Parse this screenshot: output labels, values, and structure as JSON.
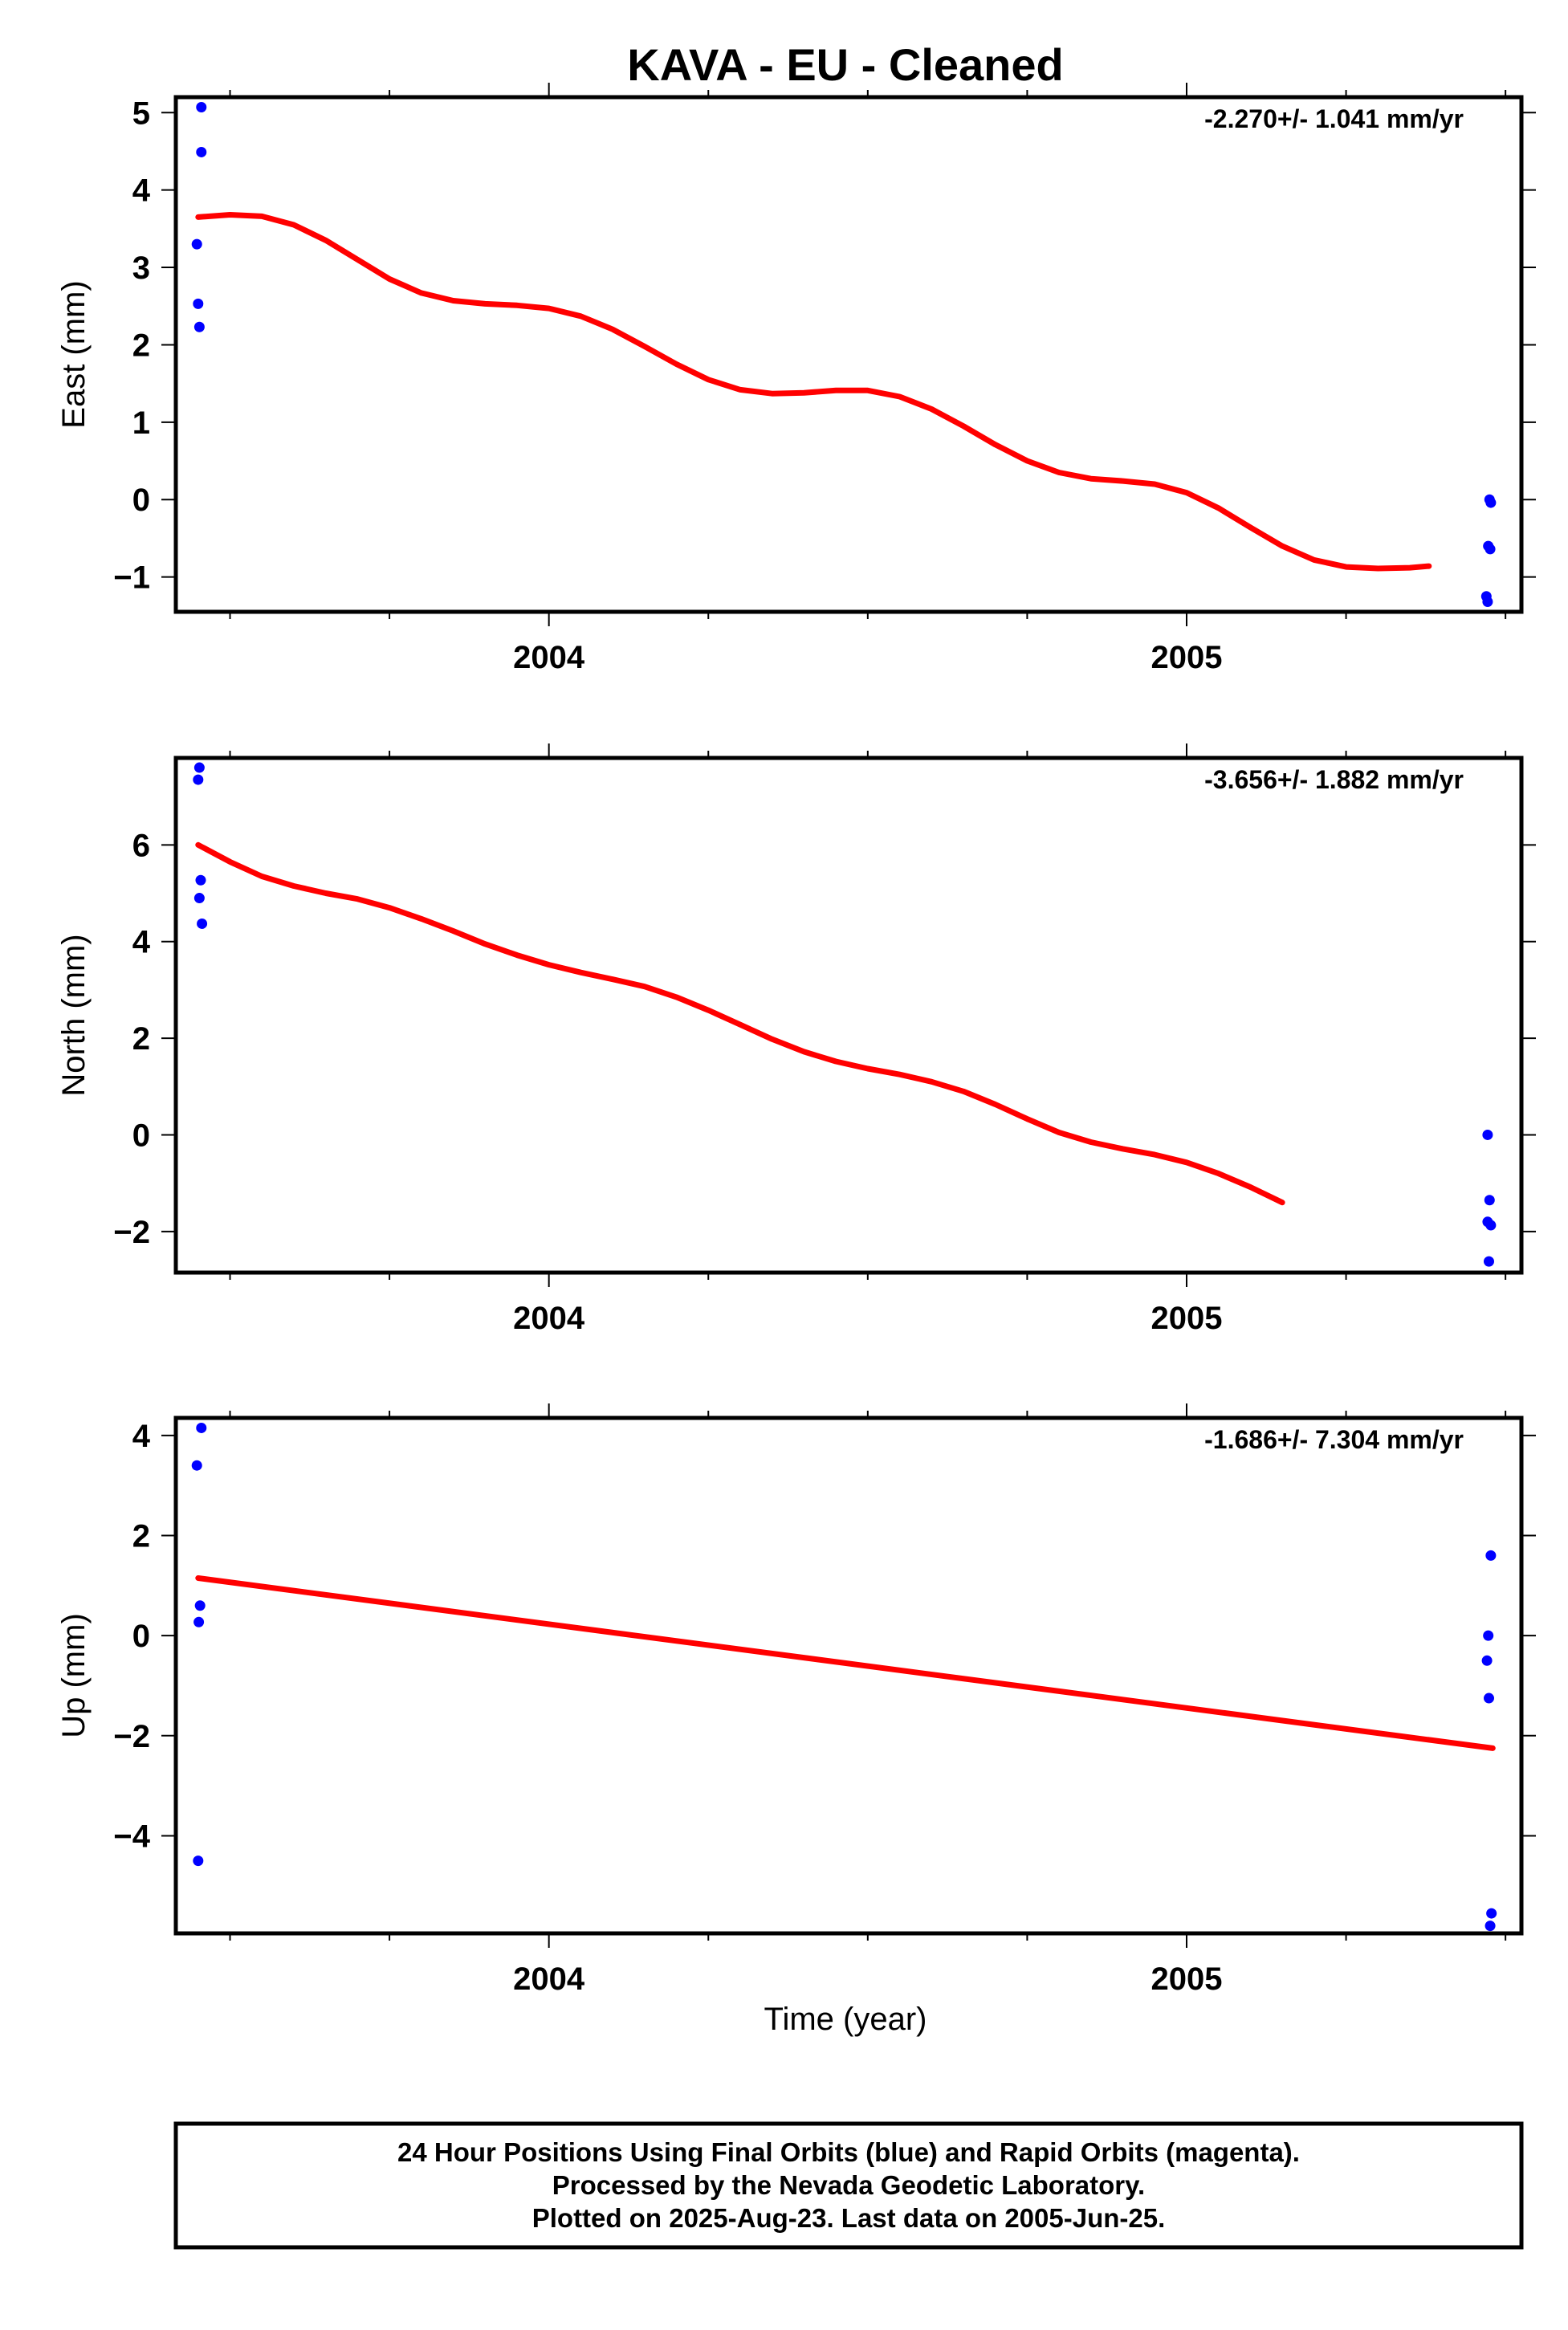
{
  "title": "KAVA  - EU - Cleaned",
  "xlabel": "Time (year)",
  "footer": {
    "line1": "24 Hour Positions Using Final Orbits (blue) and Rapid Orbits (magenta).",
    "line2": "Processed by the Nevada Geodetic Laboratory.",
    "line3": "Plotted on 2025-Aug-23. Last data on 2005-Jun-25."
  },
  "colors": {
    "final_orbits": "#0000ff",
    "fit": "#ff0000"
  },
  "chart_data": [
    {
      "type": "scatter",
      "name": "east",
      "ylabel": "East (mm)",
      "rate_label": "-2.270+/- 1.041 mm/yr",
      "xlim": [
        2003.415,
        2005.525
      ],
      "ylim": [
        -1.45,
        5.2
      ],
      "xticks": [
        2004,
        2005
      ],
      "xtick_labels": [
        "2004",
        "2005"
      ],
      "yticks": [
        -1,
        0,
        1,
        2,
        3,
        4,
        5
      ],
      "ytick_labels": [
        "−1",
        "0",
        "1",
        "2",
        "3",
        "4",
        "5"
      ],
      "points": [
        [
          2003.455,
          5.07
        ],
        [
          2003.455,
          4.49
        ],
        [
          2003.448,
          3.3
        ],
        [
          2003.45,
          2.53
        ],
        [
          2003.452,
          2.23
        ],
        [
          2005.475,
          0.0
        ],
        [
          2005.477,
          -0.04
        ],
        [
          2005.473,
          -0.6
        ],
        [
          2005.476,
          -0.64
        ],
        [
          2005.47,
          -1.25
        ],
        [
          2005.472,
          -1.32
        ]
      ],
      "fit": [
        [
          2003.45,
          3.65
        ],
        [
          2003.5,
          3.68
        ],
        [
          2003.55,
          3.66
        ],
        [
          2003.6,
          3.55
        ],
        [
          2003.65,
          3.35
        ],
        [
          2003.7,
          3.1
        ],
        [
          2003.75,
          2.85
        ],
        [
          2003.8,
          2.67
        ],
        [
          2003.85,
          2.57
        ],
        [
          2003.9,
          2.53
        ],
        [
          2003.95,
          2.51
        ],
        [
          2004.0,
          2.47
        ],
        [
          2004.05,
          2.37
        ],
        [
          2004.1,
          2.2
        ],
        [
          2004.15,
          1.98
        ],
        [
          2004.2,
          1.75
        ],
        [
          2004.25,
          1.55
        ],
        [
          2004.3,
          1.42
        ],
        [
          2004.35,
          1.37
        ],
        [
          2004.4,
          1.38
        ],
        [
          2004.45,
          1.41
        ],
        [
          2004.5,
          1.41
        ],
        [
          2004.55,
          1.33
        ],
        [
          2004.6,
          1.17
        ],
        [
          2004.65,
          0.95
        ],
        [
          2004.7,
          0.71
        ],
        [
          2004.75,
          0.5
        ],
        [
          2004.8,
          0.35
        ],
        [
          2004.85,
          0.27
        ],
        [
          2004.9,
          0.24
        ],
        [
          2004.95,
          0.2
        ],
        [
          2005.0,
          0.09
        ],
        [
          2005.05,
          -0.11
        ],
        [
          2005.1,
          -0.36
        ],
        [
          2005.15,
          -0.6
        ],
        [
          2005.2,
          -0.78
        ],
        [
          2005.25,
          -0.87
        ],
        [
          2005.3,
          -0.89
        ],
        [
          2005.35,
          -0.88
        ],
        [
          2005.38,
          -0.86
        ]
      ]
    },
    {
      "type": "scatter",
      "name": "north",
      "ylabel": "North (mm)",
      "rate_label": "-3.656+/- 1.882 mm/yr",
      "xlim": [
        2003.415,
        2005.525
      ],
      "ylim": [
        -2.85,
        7.8
      ],
      "xticks": [
        2004,
        2005
      ],
      "xtick_labels": [
        "2004",
        "2005"
      ],
      "yticks": [
        -2,
        0,
        2,
        4,
        6
      ],
      "ytick_labels": [
        "−2",
        "0",
        "2",
        "4",
        "6"
      ],
      "points": [
        [
          2003.452,
          7.6
        ],
        [
          2003.45,
          7.35
        ],
        [
          2003.454,
          5.27
        ],
        [
          2003.452,
          4.9
        ],
        [
          2003.456,
          4.37
        ],
        [
          2005.472,
          0.0
        ],
        [
          2005.475,
          -1.35
        ],
        [
          2005.472,
          -1.8
        ],
        [
          2005.477,
          -1.87
        ],
        [
          2005.474,
          -2.62
        ]
      ],
      "fit": [
        [
          2003.45,
          6.0
        ],
        [
          2003.5,
          5.65
        ],
        [
          2003.55,
          5.35
        ],
        [
          2003.6,
          5.15
        ],
        [
          2003.65,
          5.0
        ],
        [
          2003.7,
          4.88
        ],
        [
          2003.75,
          4.7
        ],
        [
          2003.8,
          4.47
        ],
        [
          2003.85,
          4.22
        ],
        [
          2003.9,
          3.95
        ],
        [
          2003.95,
          3.72
        ],
        [
          2004.0,
          3.52
        ],
        [
          2004.05,
          3.36
        ],
        [
          2004.1,
          3.22
        ],
        [
          2004.15,
          3.07
        ],
        [
          2004.2,
          2.85
        ],
        [
          2004.25,
          2.58
        ],
        [
          2004.3,
          2.28
        ],
        [
          2004.35,
          1.98
        ],
        [
          2004.4,
          1.72
        ],
        [
          2004.45,
          1.52
        ],
        [
          2004.5,
          1.37
        ],
        [
          2004.55,
          1.25
        ],
        [
          2004.6,
          1.1
        ],
        [
          2004.65,
          0.9
        ],
        [
          2004.7,
          0.63
        ],
        [
          2004.75,
          0.33
        ],
        [
          2004.8,
          0.05
        ],
        [
          2004.85,
          -0.15
        ],
        [
          2004.9,
          -0.29
        ],
        [
          2004.95,
          -0.41
        ],
        [
          2005.0,
          -0.57
        ],
        [
          2005.05,
          -0.8
        ],
        [
          2005.1,
          -1.08
        ],
        [
          2005.15,
          -1.4
        ]
      ]
    },
    {
      "type": "scatter",
      "name": "up",
      "ylabel": "Up (mm)",
      "rate_label": "-1.686+/- 7.304 mm/yr",
      "xlim": [
        2003.415,
        2005.525
      ],
      "ylim": [
        -5.95,
        4.35
      ],
      "xticks": [
        2004,
        2005
      ],
      "xtick_labels": [
        "2004",
        "2005"
      ],
      "yticks": [
        -4,
        -2,
        0,
        2,
        4
      ],
      "ytick_labels": [
        "−4",
        "−2",
        "0",
        "2",
        "4"
      ],
      "points": [
        [
          2003.455,
          4.15
        ],
        [
          2003.448,
          3.4
        ],
        [
          2003.453,
          0.6
        ],
        [
          2003.451,
          0.27
        ],
        [
          2003.45,
          -4.5
        ],
        [
          2005.477,
          1.6
        ],
        [
          2005.473,
          0.0
        ],
        [
          2005.471,
          -0.5
        ],
        [
          2005.474,
          -1.25
        ],
        [
          2005.478,
          -5.55
        ],
        [
          2005.476,
          -5.8
        ]
      ],
      "fit": [
        [
          2003.45,
          1.15
        ],
        [
          2005.48,
          -2.25
        ]
      ]
    }
  ]
}
